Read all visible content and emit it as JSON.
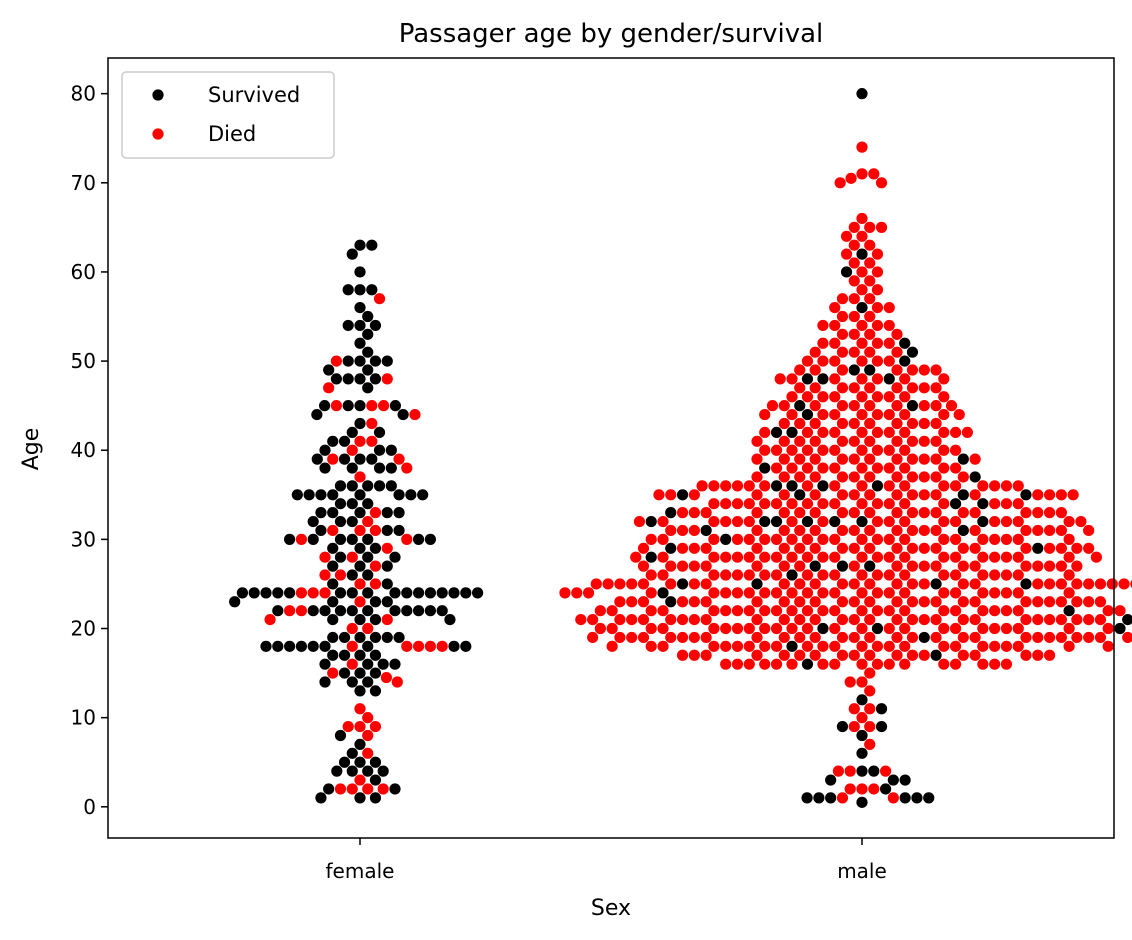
{
  "chart_data": {
    "type": "scatter",
    "subtype": "swarm",
    "title": "Passager age by gender/survival",
    "xlabel": "Sex",
    "ylabel": "Age",
    "categories": [
      "female",
      "male"
    ],
    "ylim": [
      -3.5,
      84
    ],
    "yticks": [
      0,
      10,
      20,
      30,
      40,
      50,
      60,
      70,
      80
    ],
    "legend": {
      "placement": "top-left"
    },
    "grid": false,
    "series": [
      {
        "name": "Survived",
        "color": "#000000",
        "values": {
          "female": [
            1,
            1,
            1,
            2,
            2,
            3,
            4,
            4,
            4,
            4,
            5,
            5,
            5,
            6,
            7,
            8,
            13,
            13,
            14,
            14,
            14,
            15,
            15,
            15,
            16,
            16,
            16,
            16,
            17,
            17,
            17,
            17,
            18,
            18,
            18,
            18,
            18,
            18,
            18,
            18,
            18,
            19,
            19,
            19,
            19,
            19,
            19,
            21,
            21,
            21,
            21,
            22,
            22,
            22,
            22,
            22,
            22,
            22,
            22,
            22,
            22,
            22,
            23,
            23,
            23,
            23,
            24,
            24,
            24,
            24,
            24,
            24,
            24,
            24,
            24,
            24,
            24,
            24,
            24,
            24,
            24,
            24,
            25,
            25,
            26,
            26,
            27,
            27,
            27,
            28,
            28,
            28,
            29,
            29,
            29,
            30,
            30,
            30,
            30,
            30,
            30,
            30,
            31,
            31,
            31,
            32,
            32,
            32,
            33,
            33,
            33,
            33,
            33,
            34,
            34,
            34,
            35,
            35,
            35,
            35,
            35,
            35,
            35,
            35,
            36,
            36,
            36,
            36,
            36,
            38,
            38,
            38,
            38,
            39,
            39,
            39,
            39,
            40,
            40,
            40,
            41,
            41,
            42,
            42,
            43,
            44,
            44,
            45,
            45,
            45,
            45,
            47,
            48,
            48,
            48,
            48,
            49,
            49,
            50,
            50,
            50,
            50,
            51,
            52,
            53,
            54,
            54,
            54,
            55,
            56,
            58,
            58,
            58,
            60,
            62,
            63,
            63
          ],
          "male": [
            0.5,
            1,
            1,
            1,
            1,
            1,
            1,
            2,
            3,
            3,
            3,
            4,
            4,
            6,
            8,
            9,
            9,
            11,
            12,
            16,
            17,
            18,
            19,
            20,
            20,
            20,
            21,
            22,
            23,
            24,
            25,
            25,
            25,
            25,
            26,
            27,
            27,
            27,
            28,
            29,
            29,
            30,
            31,
            31,
            32,
            32,
            32,
            32,
            32,
            32,
            32,
            33,
            34,
            34,
            35,
            35,
            35,
            35,
            36,
            36,
            36,
            36,
            37,
            38,
            39,
            42,
            42,
            44,
            45,
            45,
            48,
            48,
            48,
            49,
            49,
            50,
            51,
            52,
            56,
            60,
            62,
            80
          ]
        }
      },
      {
        "name": "Died",
        "color": "#ff0000",
        "values": {
          "female": [
            2,
            2,
            2,
            2,
            3,
            6,
            8,
            9,
            9,
            9,
            10,
            11,
            14,
            14.5,
            15,
            16,
            18,
            18,
            18,
            18,
            18,
            20,
            20,
            21,
            21,
            22,
            22,
            23,
            24,
            24,
            24,
            25,
            25,
            26,
            26,
            27,
            28,
            28,
            29,
            30,
            30,
            31,
            31,
            31,
            32,
            33,
            37,
            38,
            39,
            39,
            40,
            41,
            41,
            43,
            44,
            45,
            45,
            45,
            47,
            48,
            50,
            57
          ],
          "male": [
            1,
            1,
            2,
            2,
            2,
            4,
            4,
            4,
            7,
            9,
            9,
            10,
            11,
            11,
            13,
            14,
            14,
            15,
            16,
            16,
            16,
            16,
            16,
            16,
            16,
            16,
            16,
            16,
            16,
            16,
            16,
            16,
            16,
            16,
            16,
            17,
            17,
            17,
            17,
            17,
            17,
            17,
            17,
            17,
            17,
            17,
            17,
            17,
            17,
            17,
            17,
            17,
            17,
            18,
            18,
            18,
            18,
            18,
            18,
            18,
            18,
            18,
            18,
            18,
            18,
            18,
            18,
            18,
            18,
            18,
            18,
            18,
            18,
            18,
            18,
            18,
            18,
            19,
            19,
            19,
            19,
            19,
            19,
            19,
            19,
            19,
            19,
            19,
            19,
            19,
            19,
            19,
            19,
            19,
            19,
            19,
            19,
            19,
            19,
            19,
            19,
            19,
            19,
            19,
            19,
            20,
            20,
            20,
            20,
            20,
            20,
            20,
            20,
            20,
            20,
            20,
            20,
            20,
            20,
            20,
            20,
            20,
            20,
            20,
            20,
            20,
            20,
            20,
            20,
            21,
            21,
            21,
            21,
            21,
            21,
            21,
            21,
            21,
            21,
            21,
            21,
            21,
            21,
            21,
            21,
            21,
            21,
            21,
            21,
            21,
            21,
            21,
            21,
            21,
            21,
            21,
            21,
            21,
            21,
            22,
            22,
            22,
            22,
            22,
            22,
            22,
            22,
            22,
            22,
            22,
            22,
            22,
            22,
            22,
            22,
            22,
            22,
            22,
            22,
            22,
            22,
            22,
            22,
            22,
            22,
            23,
            23,
            23,
            23,
            23,
            23,
            23,
            23,
            23,
            23,
            23,
            23,
            23,
            23,
            23,
            23,
            23,
            23,
            23,
            23,
            23,
            23,
            23,
            23,
            23,
            23,
            24,
            24,
            24,
            24,
            24,
            24,
            24,
            24,
            24,
            24,
            24,
            24,
            24,
            24,
            24,
            24,
            24,
            24,
            24,
            24,
            24,
            24,
            24,
            24,
            24,
            24,
            24,
            24,
            25,
            25,
            25,
            25,
            25,
            25,
            25,
            25,
            25,
            25,
            25,
            25,
            25,
            25,
            25,
            25,
            25,
            25,
            25,
            25,
            25,
            25,
            25,
            25,
            25,
            25,
            25,
            25,
            26,
            26,
            26,
            26,
            26,
            26,
            26,
            26,
            26,
            26,
            26,
            26,
            26,
            26,
            26,
            26,
            26,
            26,
            26,
            26,
            26,
            26,
            27,
            27,
            27,
            27,
            27,
            27,
            27,
            27,
            27,
            27,
            27,
            27,
            27,
            27,
            27,
            27,
            27,
            27,
            27,
            27,
            28,
            28,
            28,
            28,
            28,
            28,
            28,
            28,
            28,
            28,
            28,
            28,
            28,
            28,
            28,
            28,
            28,
            28,
            28,
            28,
            28,
            28,
            28,
            28,
            29,
            29,
            29,
            29,
            29,
            29,
            29,
            29,
            29,
            29,
            29,
            29,
            29,
            29,
            29,
            29,
            29,
            29,
            29,
            29,
            29,
            29,
            30,
            30,
            30,
            30,
            30,
            30,
            30,
            30,
            30,
            30,
            30,
            30,
            30,
            30,
            30,
            30,
            30,
            30,
            30,
            30,
            30,
            30,
            31,
            31,
            31,
            31,
            31,
            31,
            31,
            31,
            31,
            31,
            31,
            31,
            31,
            31,
            31,
            31,
            31,
            31,
            31,
            31,
            32,
            32,
            32,
            32,
            32,
            32,
            32,
            32,
            32,
            32,
            32,
            32,
            32,
            32,
            32,
            32,
            32,
            32,
            33,
            33,
            33,
            33,
            33,
            33,
            33,
            33,
            33,
            33,
            33,
            33,
            33,
            33,
            33,
            33,
            33,
            33,
            33,
            33,
            34,
            34,
            34,
            34,
            34,
            34,
            34,
            34,
            34,
            34,
            34,
            34,
            34,
            34,
            34,
            34,
            34,
            34,
            35,
            35,
            35,
            35,
            35,
            35,
            35,
            35,
            35,
            35,
            35,
            35,
            35,
            35,
            35,
            35,
            35,
            35,
            36,
            36,
            36,
            36,
            36,
            36,
            36,
            36,
            36,
            36,
            36,
            36,
            36,
            36,
            36,
            36,
            36,
            37,
            37,
            37,
            37,
            37,
            37,
            37,
            37,
            37,
            37,
            37,
            37,
            38,
            38,
            38,
            38,
            38,
            38,
            38,
            38,
            38,
            38,
            38,
            39,
            39,
            39,
            39,
            39,
            39,
            39,
            39,
            39,
            39,
            39,
            39,
            40,
            40,
            40,
            40,
            40,
            40,
            40,
            40,
            40,
            40,
            40,
            40,
            41,
            41,
            41,
            41,
            41,
            41,
            41,
            41,
            41,
            41,
            41,
            42,
            42,
            42,
            42,
            42,
            42,
            42,
            42,
            42,
            42,
            42,
            43,
            43,
            43,
            43,
            43,
            43,
            43,
            43,
            43,
            43,
            44,
            44,
            44,
            44,
            44,
            44,
            44,
            44,
            44,
            44,
            45,
            45,
            45,
            45,
            45,
            45,
            45,
            45,
            45,
            45,
            46,
            46,
            46,
            46,
            46,
            46,
            46,
            46,
            46,
            47,
            47,
            47,
            47,
            47,
            47,
            47,
            47,
            47,
            48,
            48,
            48,
            48,
            48,
            48,
            48,
            49,
            49,
            49,
            49,
            49,
            49,
            49,
            50,
            50,
            50,
            50,
            50,
            50,
            51,
            51,
            51,
            51,
            51,
            52,
            52,
            52,
            52,
            52,
            53,
            53,
            53,
            53,
            54,
            54,
            54,
            54,
            54,
            55,
            55,
            55,
            56,
            56,
            56,
            57,
            57,
            57,
            58,
            58,
            59,
            59,
            60,
            60,
            61,
            61,
            62,
            62,
            63,
            63,
            64,
            64,
            65,
            65,
            65,
            66,
            70,
            70,
            70.5,
            71,
            71,
            74
          ]
        }
      }
    ]
  }
}
